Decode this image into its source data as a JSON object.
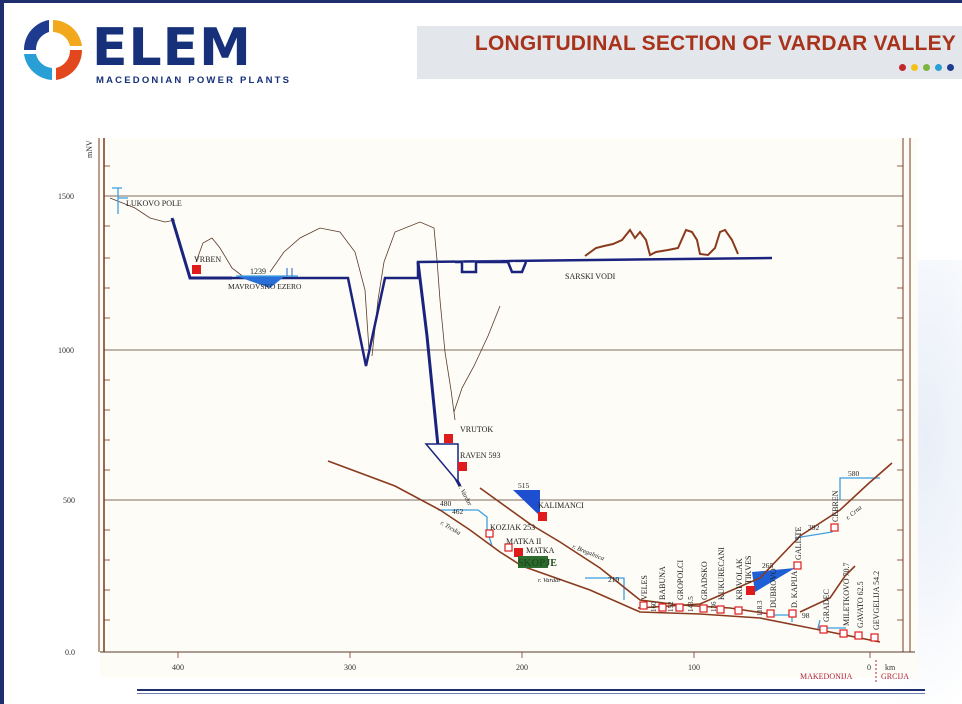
{
  "header": {
    "brand": "ELEM",
    "brand_sub": "MACEDONIAN POWER PLANTS",
    "title": "LONGITUDINAL SECTION OF VARDAR VALLEY",
    "dot_colors": [
      "#c0282d",
      "#f2c21b",
      "#7fb341",
      "#2a9fd6",
      "#1f3b8f"
    ]
  },
  "colors": {
    "terrain": "#8a3a1e",
    "head": "#1a237e",
    "reservoir": "#1f5fd6",
    "water_line": "#3aa0e0",
    "plant_existing": "#e01b1b",
    "plant_planned": "#e01b1b"
  },
  "diagram": {
    "ylabel": "mNV",
    "y_ticks": [
      "1500",
      "1000",
      "500",
      "0.0"
    ],
    "x_ticks": [
      "400",
      "300",
      "200",
      "100"
    ],
    "x_unit": "km",
    "x_zero": "0",
    "border_labels": [
      "MAKEDONIJA",
      "GRCIJA"
    ],
    "labels": {
      "lukovo": "LUKOVO POLE",
      "vrben": "VRBEN",
      "mavrovo": "MAVROVSKO EZERO",
      "mavrovo_level": "1239",
      "sarski": "SARSKI VODI",
      "vrutok": "VRUTOK",
      "raven": "RAVEN 593",
      "r_vardar_up": "r. Vardar",
      "r_treska": "r. Treska",
      "kozjak": "KOZJAK 253",
      "kozjak_levels": [
        "480",
        "462"
      ],
      "matka2": "MATKA II",
      "matka": "MATKA",
      "skopje": "SKOPJE",
      "r_vardar": "r. Vardar",
      "r_bregalnica": "r. Bregalnica",
      "kalimanci": "KALIMANCI",
      "kalimanci_level": "515",
      "level_219": "219",
      "veles": "VELES",
      "babuna": "BABUNA",
      "gropolci": "GROPOLCI",
      "gradsko": "GRADSKO",
      "kukurecani": "KUKURECANI",
      "krivolak": "KRIVOLAK",
      "tikves": "TIKVES",
      "dubrovo": "DUBROVO",
      "dkapija": "D. KAPIJA",
      "galiste": "GALISTE",
      "cebren": "CEBREN",
      "r_crna": "r. Crna",
      "gradec": "GRADEC",
      "miletkovo": "MILETKOVO 70.7",
      "gavato": "GAVATO 62.5",
      "gevgelija": "GEVGELIJA 54.2",
      "v160": "160",
      "v152": "152",
      "v143": "143.5",
      "v136": "136",
      "v118": "118.3",
      "v265": "265",
      "v98": "98",
      "v392": "392",
      "v580": "580"
    }
  }
}
